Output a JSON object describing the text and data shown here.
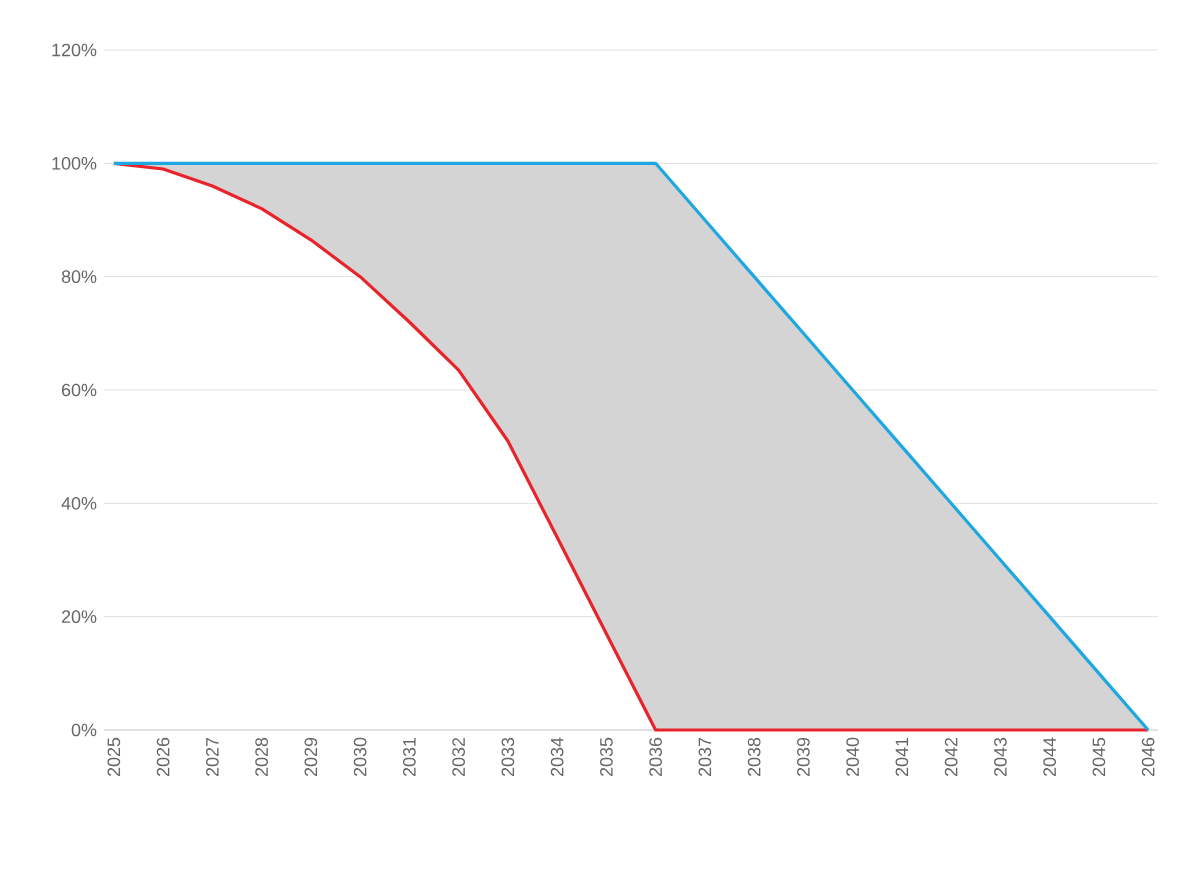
{
  "chart_data": {
    "type": "line",
    "categories": [
      "2025",
      "2026",
      "2027",
      "2028",
      "2029",
      "2030",
      "2031",
      "2032",
      "2033",
      "2034",
      "2035",
      "2036",
      "2037",
      "2038",
      "2039",
      "2040",
      "2041",
      "2042",
      "2043",
      "2044",
      "2045",
      "2046"
    ],
    "series": [
      {
        "color": "#e8232a",
        "values": [
          100,
          99,
          96,
          92,
          86.5,
          80,
          72,
          63.5,
          51,
          34,
          17,
          0,
          0,
          0,
          0,
          0,
          0,
          0,
          0,
          0,
          0,
          0
        ]
      },
      {
        "color": "#1ea7e0",
        "values": [
          100,
          100,
          100,
          100,
          100,
          100,
          100,
          100,
          100,
          100,
          100,
          100,
          90,
          80,
          70,
          60,
          50,
          40,
          30,
          20,
          10,
          0
        ],
        "lower": [
          100,
          99,
          96,
          92,
          86.5,
          80,
          72,
          63.5,
          51,
          34,
          17,
          0,
          0,
          0,
          0,
          0,
          0,
          0,
          0,
          0,
          0,
          0
        ],
        "upper": [
          100,
          100,
          100,
          100,
          100,
          100,
          100,
          100,
          100,
          100,
          100,
          100,
          90,
          80,
          70,
          60,
          50,
          40,
          30,
          20,
          10,
          0
        ]
      }
    ],
    "ylim": [
      0,
      120
    ],
    "yticks": [
      {
        "value": 0,
        "label": "0%"
      },
      {
        "value": 20,
        "label": "20%"
      },
      {
        "value": 40,
        "label": "40%"
      },
      {
        "value": 60,
        "label": "60%"
      },
      {
        "value": 80,
        "label": "80%"
      },
      {
        "value": 100,
        "label": "100%"
      },
      {
        "value": 120,
        "label": "120%"
      }
    ],
    "grid": "y",
    "marker": "none",
    "line_style": "solid"
  }
}
